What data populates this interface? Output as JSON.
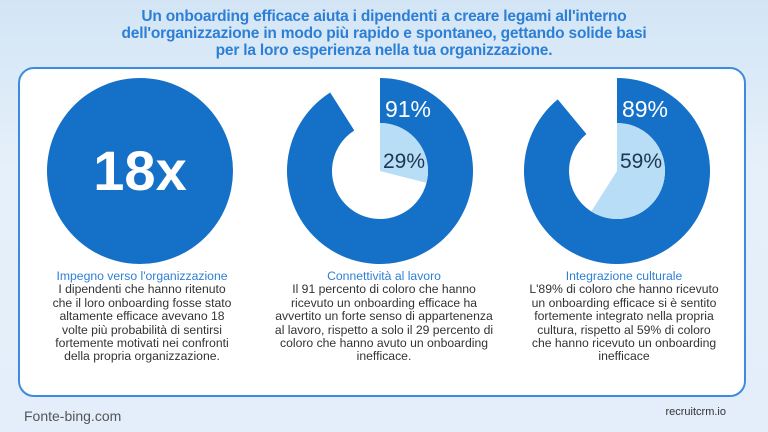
{
  "title_lines": [
    "Un onboarding efficace aiuta i dipendenti a creare legami all'interno",
    "dell'organizzazione in modo più rapido e spontaneo, gettando solide basi",
    "per la loro esperienza nella tua organizzazione."
  ],
  "colors": {
    "dark": "#1570c8",
    "light": "#b8ddf7",
    "accent_text": "#2d7fd6"
  },
  "chart_data": [
    {
      "type": "stat",
      "value_label": "18x",
      "title": "Impegno verso l'organizzazione",
      "description_lines": [
        "I dipendenti che hanno ritenuto",
        "che il loro onboarding fosse stato",
        "altamente efficace avevano 18",
        "volte più probabilità di sentirsi",
        "fortemente motivati nei confronti",
        "della propria organizzazione."
      ]
    },
    {
      "type": "pie",
      "outer_value": 91,
      "inner_value": 29,
      "outer_label": "91%",
      "inner_label": "29%",
      "title": "Connettività al lavoro",
      "description_lines": [
        "Il 91 percento di coloro che hanno",
        "ricevuto un onboarding efficace ha",
        "avvertito un forte senso di appartenenza",
        "al lavoro, rispetto a solo il 29 percento di",
        "coloro che hanno avuto un onboarding",
        "inefficace."
      ]
    },
    {
      "type": "pie",
      "outer_value": 89,
      "inner_value": 59,
      "outer_label": "89%",
      "inner_label": "59%",
      "title": "Integrazione culturale",
      "description_lines": [
        "L'89% di coloro che hanno ricevuto",
        "un onboarding efficace si è sentito",
        "fortemente integrato nella propria",
        "cultura, rispetto al 59% di coloro",
        "che hanno ricevuto un onboarding",
        "inefficace"
      ]
    }
  ],
  "footer": {
    "source": "Fonte-bing.com",
    "brand": "recruitcrm.io"
  }
}
